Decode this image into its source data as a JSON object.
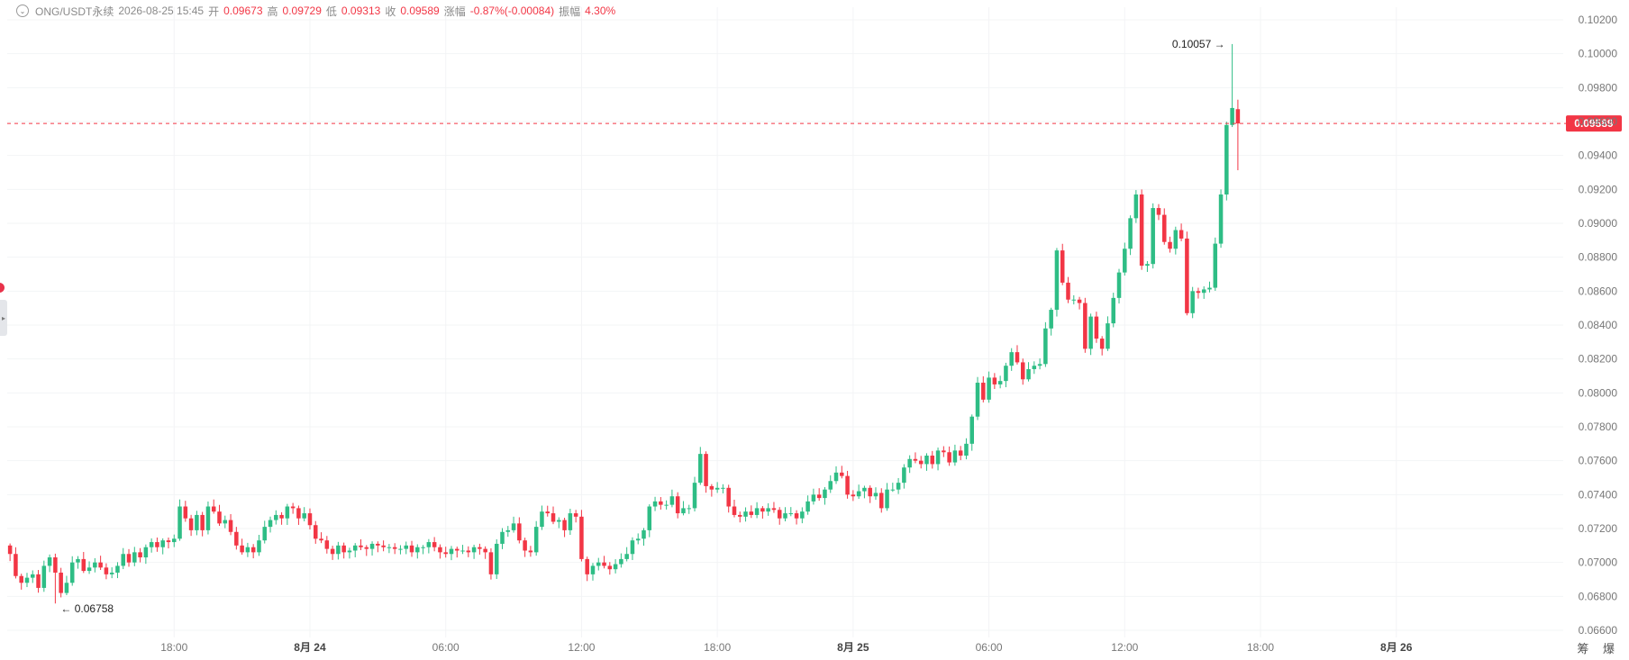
{
  "header": {
    "symbol": "ONG/USDT永续",
    "datetime": "2026-08-25 15:45",
    "open_label": "开",
    "open": "0.09673",
    "high_label": "高",
    "high": "0.09729",
    "low_label": "低",
    "low": "0.09313",
    "close_label": "收",
    "close": "0.09589",
    "change_label": "涨幅",
    "change": "-0.87%(-0.00084)",
    "amp_label": "振幅",
    "amp": "4.30%"
  },
  "corner_text": "筹 爆",
  "colors": {
    "up": "#2ebd85",
    "down": "#f23645",
    "price_line": "#f23645",
    "grid": "#f3f4f6"
  },
  "chart_data": {
    "type": "candlestick",
    "ylim": [
      0.066,
      0.102
    ],
    "y_ticks": [
      "0.06600",
      "0.06800",
      "0.07000",
      "0.07200",
      "0.07400",
      "0.07600",
      "0.07800",
      "0.08000",
      "0.08200",
      "0.08400",
      "0.08600",
      "0.08800",
      "0.09000",
      "0.09200",
      "0.09400",
      "0.09600",
      "0.09800",
      "0.10000",
      "0.10200"
    ],
    "x_ticks": [
      {
        "label": "18:00",
        "index": 29
      },
      {
        "label": "8月 24",
        "index": 53
      },
      {
        "label": "06:00",
        "index": 77
      },
      {
        "label": "12:00",
        "index": 101
      },
      {
        "label": "18:00",
        "index": 125
      },
      {
        "label": "8月 25",
        "index": 149
      },
      {
        "label": "06:00",
        "index": 173
      },
      {
        "label": "12:00",
        "index": 197
      },
      {
        "label": "18:00",
        "index": 221
      },
      {
        "label": "8月 26",
        "index": 245
      }
    ],
    "total_slots": 275,
    "current_price": "0.09589",
    "max_label": "0.10057",
    "min_label": "0.06758",
    "closes": [
      0.0705,
      0.0692,
      0.0688,
      0.0691,
      0.0693,
      0.0685,
      0.0698,
      0.0703,
      0.0694,
      0.0682,
      0.0688,
      0.07,
      0.0702,
      0.0695,
      0.0697,
      0.07,
      0.0697,
      0.0693,
      0.0694,
      0.0698,
      0.0705,
      0.07,
      0.0706,
      0.0703,
      0.0709,
      0.0712,
      0.0709,
      0.0713,
      0.0712,
      0.0714,
      0.0733,
      0.0726,
      0.0719,
      0.0728,
      0.0719,
      0.0733,
      0.073,
      0.0723,
      0.0725,
      0.0718,
      0.071,
      0.0706,
      0.0709,
      0.0706,
      0.0713,
      0.0721,
      0.0725,
      0.0728,
      0.0726,
      0.0733,
      0.0732,
      0.0726,
      0.0729,
      0.0722,
      0.0714,
      0.0713,
      0.0708,
      0.0705,
      0.071,
      0.0706,
      0.0707,
      0.071,
      0.0709,
      0.0708,
      0.0711,
      0.071,
      0.0709,
      0.0709,
      0.0708,
      0.0708,
      0.071,
      0.0706,
      0.0709,
      0.0709,
      0.0712,
      0.0709,
      0.0706,
      0.0705,
      0.0708,
      0.0707,
      0.0707,
      0.0706,
      0.0709,
      0.0708,
      0.0706,
      0.0693,
      0.0711,
      0.0718,
      0.0719,
      0.0723,
      0.0713,
      0.0707,
      0.0706,
      0.0721,
      0.073,
      0.0729,
      0.0724,
      0.0725,
      0.0719,
      0.0729,
      0.0727,
      0.0702,
      0.0693,
      0.0698,
      0.07,
      0.0698,
      0.0696,
      0.0699,
      0.0702,
      0.0705,
      0.0713,
      0.0714,
      0.0719,
      0.0733,
      0.0736,
      0.0734,
      0.0734,
      0.0739,
      0.0729,
      0.0732,
      0.0732,
      0.0747,
      0.0764,
      0.0745,
      0.0743,
      0.0744,
      0.0744,
      0.0733,
      0.0728,
      0.0727,
      0.073,
      0.0728,
      0.0732,
      0.073,
      0.0732,
      0.0731,
      0.0726,
      0.0729,
      0.0729,
      0.0726,
      0.073,
      0.0736,
      0.074,
      0.0738,
      0.0743,
      0.0748,
      0.0753,
      0.0751,
      0.074,
      0.0739,
      0.0742,
      0.0744,
      0.0739,
      0.0741,
      0.0732,
      0.0743,
      0.0743,
      0.0747,
      0.0756,
      0.0761,
      0.076,
      0.0758,
      0.0763,
      0.0758,
      0.0766,
      0.0765,
      0.0759,
      0.0766,
      0.0763,
      0.077,
      0.0786,
      0.0806,
      0.0796,
      0.0809,
      0.0805,
      0.0807,
      0.0816,
      0.0824,
      0.0818,
      0.0808,
      0.0814,
      0.0816,
      0.0817,
      0.0838,
      0.0849,
      0.0884,
      0.0865,
      0.0855,
      0.0855,
      0.0853,
      0.0826,
      0.0845,
      0.0832,
      0.0826,
      0.0841,
      0.0856,
      0.0871,
      0.0885,
      0.0903,
      0.0917,
      0.0875,
      0.0876,
      0.0909,
      0.0905,
      0.0889,
      0.0885,
      0.0896,
      0.0891,
      0.0847,
      0.086,
      0.0859,
      0.0861,
      0.0862,
      0.0888,
      0.0917,
      0.0958,
      0.0968,
      0.09589
    ],
    "opens": [
      0.071,
      0.0705,
      0.0692,
      0.0688,
      0.0691,
      0.0693,
      0.0685,
      0.0698,
      0.0703,
      0.0694,
      0.0682,
      0.0688,
      0.07,
      0.0702,
      0.0695,
      0.0697,
      0.07,
      0.0697,
      0.0693,
      0.0694,
      0.0698,
      0.0705,
      0.07,
      0.0706,
      0.0703,
      0.0709,
      0.0712,
      0.0709,
      0.0713,
      0.0712,
      0.0714,
      0.0733,
      0.0726,
      0.0719,
      0.0728,
      0.0719,
      0.0733,
      0.073,
      0.0723,
      0.0725,
      0.0718,
      0.071,
      0.0706,
      0.0709,
      0.0706,
      0.0713,
      0.0721,
      0.0725,
      0.0728,
      0.0726,
      0.0733,
      0.0732,
      0.0726,
      0.0729,
      0.0722,
      0.0714,
      0.0713,
      0.0708,
      0.0705,
      0.071,
      0.0706,
      0.0707,
      0.071,
      0.0709,
      0.0708,
      0.0711,
      0.071,
      0.0709,
      0.0709,
      0.0708,
      0.0708,
      0.071,
      0.0706,
      0.0709,
      0.0709,
      0.0712,
      0.0709,
      0.0706,
      0.0705,
      0.0708,
      0.0707,
      0.0707,
      0.0706,
      0.0709,
      0.0708,
      0.0706,
      0.0693,
      0.0711,
      0.0718,
      0.0719,
      0.0723,
      0.0713,
      0.0707,
      0.0706,
      0.0721,
      0.073,
      0.0729,
      0.0724,
      0.0725,
      0.0719,
      0.0729,
      0.0727,
      0.0702,
      0.0693,
      0.0698,
      0.07,
      0.0698,
      0.0696,
      0.0699,
      0.0702,
      0.0705,
      0.0713,
      0.0714,
      0.0719,
      0.0733,
      0.0736,
      0.0734,
      0.0734,
      0.0739,
      0.0729,
      0.0732,
      0.0732,
      0.0747,
      0.0764,
      0.0745,
      0.0743,
      0.0744,
      0.0744,
      0.0733,
      0.0728,
      0.0727,
      0.073,
      0.0728,
      0.0732,
      0.073,
      0.0732,
      0.0731,
      0.0726,
      0.0729,
      0.0729,
      0.0726,
      0.073,
      0.0736,
      0.074,
      0.0738,
      0.0743,
      0.0748,
      0.0753,
      0.0751,
      0.074,
      0.0739,
      0.0742,
      0.0744,
      0.0739,
      0.0741,
      0.0732,
      0.0743,
      0.0743,
      0.0747,
      0.0756,
      0.0761,
      0.076,
      0.0758,
      0.0763,
      0.0758,
      0.0766,
      0.0765,
      0.0759,
      0.0766,
      0.0763,
      0.077,
      0.0786,
      0.0806,
      0.0796,
      0.0809,
      0.0805,
      0.0807,
      0.0816,
      0.0824,
      0.0818,
      0.0808,
      0.0814,
      0.0816,
      0.0817,
      0.0838,
      0.0849,
      0.0884,
      0.0865,
      0.0855,
      0.0855,
      0.0853,
      0.0826,
      0.0845,
      0.0832,
      0.0826,
      0.0841,
      0.0856,
      0.0871,
      0.0885,
      0.0903,
      0.0917,
      0.0875,
      0.0876,
      0.0909,
      0.0905,
      0.0889,
      0.0885,
      0.0896,
      0.0891,
      0.0847,
      0.086,
      0.0859,
      0.0861,
      0.0862,
      0.0888,
      0.0917,
      0.0958,
      0.09673
    ]
  }
}
